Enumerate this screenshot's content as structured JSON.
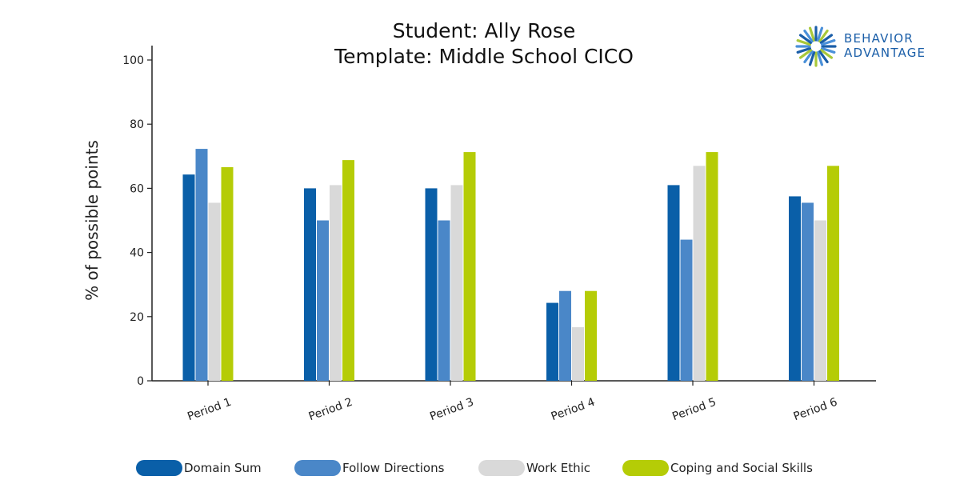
{
  "header": {
    "title_line1": "Student: Ally Rose",
    "title_line2": "Template: Middle School CICO"
  },
  "logo": {
    "line1": "BEHAVIOR",
    "line2": "ADVANTAGE",
    "icon": "starburst-logo-icon",
    "colors": [
      "#1a5ea8",
      "#4a90d9",
      "#a8c83a"
    ]
  },
  "chart_data": {
    "type": "bar",
    "categories": [
      "Period 1",
      "Period 2",
      "Period 3",
      "Period 4",
      "Period 5",
      "Period 6"
    ],
    "series": [
      {
        "name": "Domain Sum",
        "color": "#0a5fa8",
        "values": [
          64.3,
          60,
          60,
          24.3,
          61,
          57.5
        ]
      },
      {
        "name": "Follow Directions",
        "color": "#4a87c8",
        "values": [
          72.3,
          50,
          50,
          28,
          44,
          55.5
        ]
      },
      {
        "name": "Work Ethic",
        "color": "#d9d9d9",
        "values": [
          55.5,
          61,
          61,
          16.7,
          67,
          50
        ]
      },
      {
        "name": "Coping and Social Skills",
        "color": "#b5cc06",
        "values": [
          66.6,
          68.8,
          71.3,
          28,
          71.3,
          67
        ]
      }
    ],
    "xlabel": "",
    "ylabel": "% of possible points",
    "ylim": [
      0,
      100
    ],
    "yticks": [
      0,
      20,
      40,
      60,
      80,
      100
    ],
    "grid": false,
    "legend_position": "bottom"
  }
}
